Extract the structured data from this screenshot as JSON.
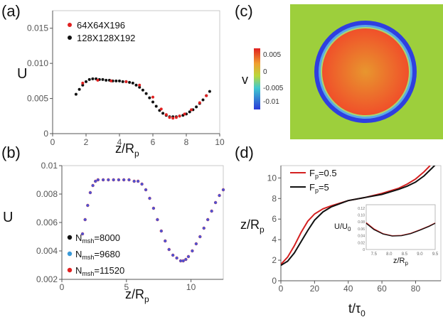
{
  "chart_data": [
    {
      "panel": "(a)",
      "type": "scatter",
      "xlabel": "z/R",
      "xlabel_sub": "p",
      "ylabel": "U",
      "xlim": [
        0,
        10
      ],
      "ylim": [
        0,
        0.0175
      ],
      "xticks": [
        "0",
        "2",
        "4",
        "6",
        "8",
        "10"
      ],
      "yticks": [
        "0",
        "0.005",
        "0.010",
        "0.015"
      ],
      "legend_position": "top-left",
      "series": [
        {
          "name": "64X64X196",
          "color": "#e02020",
          "x": [
            1.8,
            2.7,
            3.5,
            4.4,
            5.2,
            6.0,
            6.5,
            6.8,
            7.0,
            7.2,
            7.4,
            7.6,
            7.9,
            8.3,
            8.8,
            9.2
          ],
          "y": [
            0.0072,
            0.0076,
            0.0075,
            0.0074,
            0.0069,
            0.0052,
            0.0035,
            0.0027,
            0.0023,
            0.0022,
            0.0023,
            0.0025,
            0.0028,
            0.0034,
            0.0044,
            0.0054
          ]
        },
        {
          "name": "128X128X192",
          "color": "#111111",
          "x": [
            1.4,
            1.6,
            1.8,
            2.0,
            2.2,
            2.4,
            2.6,
            2.8,
            3.0,
            3.2,
            3.4,
            3.6,
            3.8,
            4.0,
            4.2,
            4.4,
            4.6,
            4.8,
            5.0,
            5.2,
            5.4,
            5.6,
            5.8,
            6.0,
            6.2,
            6.4,
            6.6,
            6.8,
            7.0,
            7.2,
            7.4,
            7.6,
            7.8,
            8.0,
            8.2,
            8.4,
            8.6,
            8.8,
            9.0,
            9.2,
            9.4
          ],
          "y": [
            0.0056,
            0.0063,
            0.0069,
            0.0074,
            0.0077,
            0.0078,
            0.0078,
            0.0077,
            0.0077,
            0.0076,
            0.0076,
            0.0075,
            0.0075,
            0.0075,
            0.0074,
            0.0074,
            0.0073,
            0.0072,
            0.0069,
            0.0066,
            0.0062,
            0.0057,
            0.0051,
            0.0045,
            0.0039,
            0.0033,
            0.0029,
            0.0026,
            0.0024,
            0.0024,
            0.0024,
            0.0025,
            0.0026,
            0.0028,
            0.0031,
            0.0034,
            0.0038,
            0.0043,
            0.0048,
            0.0054,
            0.006
          ]
        }
      ]
    },
    {
      "panel": "(b)",
      "type": "scatter",
      "xlabel": "z/R",
      "xlabel_sub": "p",
      "ylabel": "U",
      "xlim": [
        0,
        12.5
      ],
      "ylim": [
        0.002,
        0.01
      ],
      "xticks": [
        "0",
        "5",
        "10"
      ],
      "yticks": [
        "0.002",
        "0.004",
        "0.006",
        "0.008",
        "0.01"
      ],
      "legend_position": "bottom-left",
      "series": [
        {
          "name": "N",
          "name_sub": "msh",
          "name_suffix": "=8000",
          "color": "#111111",
          "x": [],
          "y": []
        },
        {
          "name": "N",
          "name_sub": "msh",
          "name_suffix": "=9680",
          "color": "#3a9ad9",
          "x": [],
          "y": []
        },
        {
          "name": "N",
          "name_sub": "msh",
          "name_suffix": "=11520",
          "color": "#e02020",
          "x": [
            1.6,
            1.8,
            2.0,
            2.2,
            2.4,
            2.6,
            2.8,
            3.2,
            3.6,
            4.0,
            4.4,
            4.8,
            5.2,
            5.6,
            5.9,
            6.2,
            6.5,
            6.8,
            7.1,
            7.4,
            7.7,
            8.0,
            8.3,
            8.6,
            8.9,
            9.2,
            9.4,
            9.6,
            9.8,
            10.1,
            10.4,
            10.7,
            11.0,
            11.3,
            11.6,
            11.9,
            12.2,
            12.5
          ],
          "y": [
            0.0052,
            0.0062,
            0.0072,
            0.0081,
            0.0086,
            0.0089,
            0.009,
            0.009,
            0.009,
            0.009,
            0.009,
            0.009,
            0.009,
            0.0089,
            0.0089,
            0.0087,
            0.0083,
            0.0077,
            0.007,
            0.0062,
            0.0054,
            0.0047,
            0.0041,
            0.0037,
            0.0035,
            0.0033,
            0.0033,
            0.0034,
            0.0036,
            0.004,
            0.0045,
            0.005,
            0.0056,
            0.0062,
            0.0068,
            0.0074,
            0.0079,
            0.0083
          ]
        }
      ]
    },
    {
      "panel": "(c)",
      "type": "heatmap",
      "colorbar_label": "v",
      "colorbar_ticks": [
        "0.005",
        "0",
        "-0.005",
        "-0.01"
      ],
      "colorbar_range": [
        -0.012,
        0.007
      ],
      "colors": {
        "background": "#9dcf3c",
        "ring": "#2f3fe0",
        "core_edge": "#f0502a",
        "core_center": "#e8962e"
      }
    },
    {
      "panel": "(d)",
      "type": "line",
      "xlabel": "t/τ",
      "xlabel_sub": "0",
      "ylabel": "z/R",
      "ylabel_sub": "p",
      "xlim": [
        0,
        95
      ],
      "ylim": [
        0,
        11.2
      ],
      "xticks": [
        "0",
        "20",
        "40",
        "60",
        "80"
      ],
      "yticks": [
        "0",
        "2",
        "4",
        "6",
        "8",
        "10"
      ],
      "legend_position": "top-left",
      "series": [
        {
          "name": "F",
          "name_sub": "p",
          "name_suffix": "=0.5",
          "color": "#d42020",
          "x": [
            0,
            4,
            8,
            12,
            16,
            20,
            25,
            30,
            40,
            50,
            60,
            70,
            75,
            80,
            85,
            88,
            90
          ],
          "y": [
            1.6,
            2.3,
            3.4,
            4.7,
            5.8,
            6.5,
            7.0,
            7.3,
            7.8,
            8.1,
            8.5,
            9.0,
            9.4,
            9.9,
            10.6,
            11.1,
            11.5
          ]
        },
        {
          "name": "F",
          "name_sub": "p",
          "name_suffix": "=5",
          "color": "#111111",
          "x": [
            0,
            4,
            8,
            12,
            16,
            20,
            25,
            30,
            40,
            50,
            60,
            70,
            75,
            80,
            85,
            90,
            93
          ],
          "y": [
            1.5,
            1.9,
            2.7,
            3.8,
            4.9,
            5.9,
            6.7,
            7.2,
            7.8,
            8.1,
            8.4,
            8.9,
            9.2,
            9.6,
            10.2,
            11.0,
            11.5
          ]
        }
      ],
      "inset": {
        "xlabel": "z/R",
        "xlabel_sub": "p",
        "ylabel": "U/U",
        "ylabel_sub": "0",
        "xlim": [
          7.25,
          9.5
        ],
        "ylim": [
          0,
          0.13
        ],
        "xticks": [
          "7.5",
          "8.0",
          "8.5",
          "9.0",
          "9.5"
        ],
        "yticks": [
          "0.12",
          "0.10",
          "0.08",
          "0.06",
          "0.04",
          "0.02",
          "0"
        ],
        "series": [
          {
            "color": "#d42020",
            "x": [
              7.25,
              7.5,
              7.8,
              8.1,
              8.4,
              8.7,
              9.0,
              9.3,
              9.5
            ],
            "y": [
              0.078,
              0.06,
              0.046,
              0.04,
              0.041,
              0.047,
              0.057,
              0.068,
              0.077
            ]
          },
          {
            "color": "#111111",
            "x": [
              7.25,
              7.5,
              7.8,
              8.1,
              8.4,
              8.7,
              9.0,
              9.3,
              9.5
            ],
            "y": [
              0.076,
              0.058,
              0.045,
              0.039,
              0.04,
              0.046,
              0.056,
              0.067,
              0.076
            ]
          }
        ]
      }
    }
  ]
}
